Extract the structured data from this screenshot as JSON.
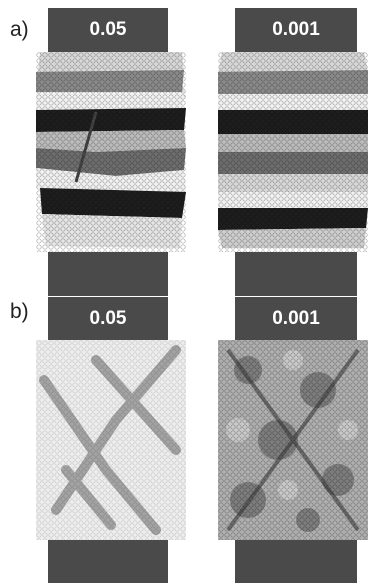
{
  "panels": [
    {
      "label": "a)",
      "samples": [
        {
          "value": "0.05"
        },
        {
          "value": "0.001"
        }
      ]
    },
    {
      "label": "b)",
      "samples": [
        {
          "value": "0.05"
        },
        {
          "value": "0.001"
        }
      ]
    }
  ],
  "colors": {
    "platen": "#4a4a4a",
    "band_light": "#d9d9d9",
    "band_mid": "#8a8a8a",
    "band_dark": "#1e1e1e",
    "band_white": "#f2f2f2",
    "shear_light": "#eeeeee",
    "shear_band": "#7a7a7a"
  }
}
